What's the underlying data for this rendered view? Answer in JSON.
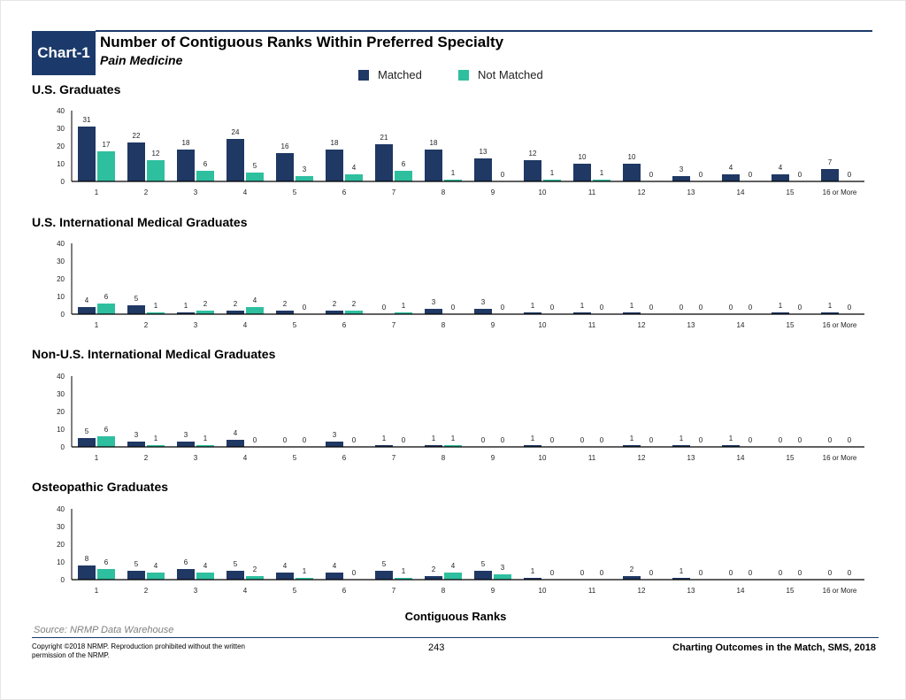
{
  "header": {
    "badge": "Chart-1",
    "title": "Number of Contiguous Ranks Within Preferred Specialty",
    "subtitle": "Pain Medicine"
  },
  "legend": {
    "matched": "Matched",
    "not_matched": "Not Matched"
  },
  "colors": {
    "matched": "#1f3864",
    "not_matched": "#2ebf9f",
    "accent": "#1b3a6b"
  },
  "chart_data": [
    {
      "type": "bar",
      "title": "U.S. Graduates",
      "categories": [
        "1",
        "2",
        "3",
        "4",
        "5",
        "6",
        "7",
        "8",
        "9",
        "10",
        "11",
        "12",
        "13",
        "14",
        "15",
        "16 or More"
      ],
      "series": [
        {
          "name": "Matched",
          "values": [
            31,
            22,
            18,
            24,
            16,
            18,
            21,
            18,
            13,
            12,
            10,
            10,
            3,
            4,
            4,
            7
          ]
        },
        {
          "name": "Not Matched",
          "values": [
            17,
            12,
            6,
            5,
            3,
            4,
            6,
            1,
            0,
            1,
            1,
            0,
            0,
            0,
            0,
            0
          ]
        }
      ],
      "yticks": [
        "0",
        "10",
        "20",
        "30",
        "40"
      ],
      "ylim": [
        0,
        40
      ]
    },
    {
      "type": "bar",
      "title": "U.S. International Medical Graduates",
      "categories": [
        "1",
        "2",
        "3",
        "4",
        "5",
        "6",
        "7",
        "8",
        "9",
        "10",
        "11",
        "12",
        "13",
        "14",
        "15",
        "16 or More"
      ],
      "series": [
        {
          "name": "Matched",
          "values": [
            4,
            5,
            1,
            2,
            2,
            2,
            0,
            3,
            3,
            1,
            1,
            1,
            0,
            0,
            1,
            1
          ]
        },
        {
          "name": "Not Matched",
          "values": [
            6,
            1,
            2,
            4,
            0,
            2,
            1,
            0,
            0,
            0,
            0,
            0,
            0,
            0,
            0,
            0
          ]
        }
      ],
      "yticks": [
        "0",
        "10",
        "20",
        "30",
        "40"
      ],
      "ylim": [
        0,
        40
      ]
    },
    {
      "type": "bar",
      "title": "Non-U.S. International Medical Graduates",
      "categories": [
        "1",
        "2",
        "3",
        "4",
        "5",
        "6",
        "7",
        "8",
        "9",
        "10",
        "11",
        "12",
        "13",
        "14",
        "15",
        "16 or More"
      ],
      "series": [
        {
          "name": "Matched",
          "values": [
            5,
            3,
            3,
            4,
            0,
            3,
            1,
            1,
            0,
            1,
            0,
            1,
            1,
            1,
            0,
            0
          ]
        },
        {
          "name": "Not Matched",
          "values": [
            6,
            1,
            1,
            0,
            0,
            0,
            0,
            1,
            0,
            0,
            0,
            0,
            0,
            0,
            0,
            0
          ]
        }
      ],
      "yticks": [
        "0",
        "10",
        "20",
        "30",
        "40"
      ],
      "ylim": [
        0,
        40
      ]
    },
    {
      "type": "bar",
      "title": "Osteopathic Graduates",
      "categories": [
        "1",
        "2",
        "3",
        "4",
        "5",
        "6",
        "7",
        "8",
        "9",
        "10",
        "11",
        "12",
        "13",
        "14",
        "15",
        "16 or More"
      ],
      "series": [
        {
          "name": "Matched",
          "values": [
            8,
            5,
            6,
            5,
            4,
            4,
            5,
            2,
            5,
            1,
            0,
            2,
            1,
            0,
            0,
            0
          ]
        },
        {
          "name": "Not Matched",
          "values": [
            6,
            4,
            4,
            2,
            1,
            0,
            1,
            4,
            3,
            0,
            0,
            0,
            0,
            0,
            0,
            0
          ]
        }
      ],
      "yticks": [
        "0",
        "10",
        "20",
        "30",
        "40"
      ],
      "ylim": [
        0,
        40
      ]
    }
  ],
  "xaxis_title": "Contiguous Ranks",
  "footer": {
    "source": "Source: NRMP Data Warehouse",
    "copyright": "Copyright ©2018 NRMP. Reproduction prohibited without the written permission of the NRMP.",
    "page_number": "243",
    "publication": "Charting Outcomes in the Match, SMS, 2018"
  }
}
